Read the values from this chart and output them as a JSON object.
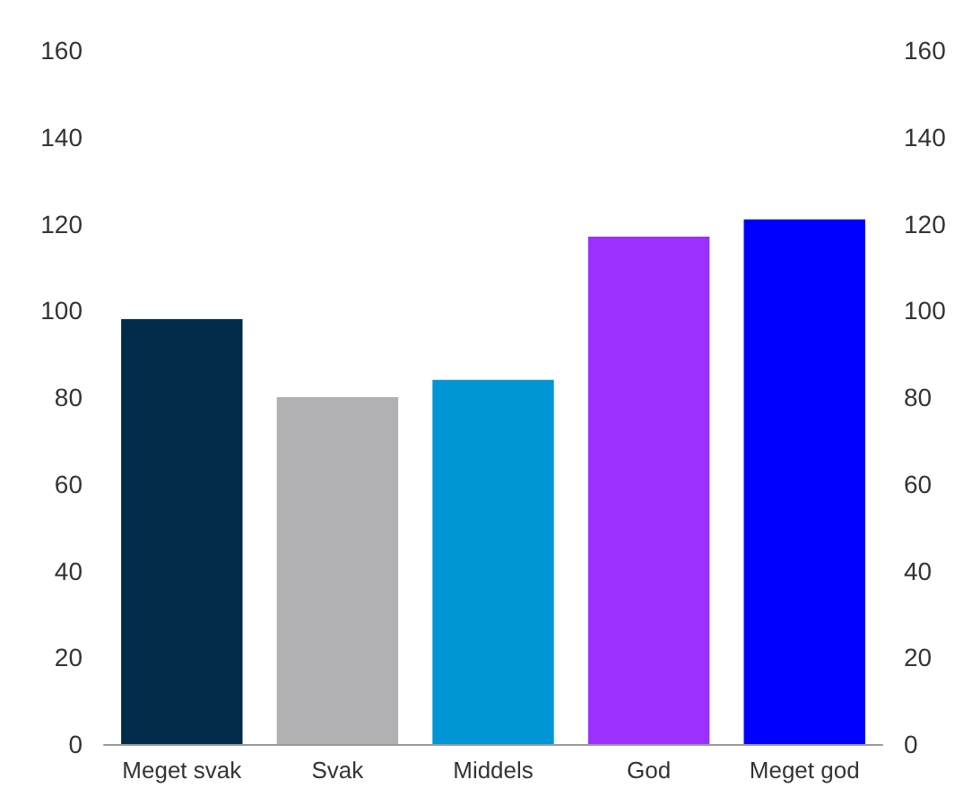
{
  "chart_data": {
    "type": "bar",
    "categories": [
      "Meget svak",
      "Svak",
      "Middels",
      "God",
      "Meget god"
    ],
    "values": [
      98,
      80,
      84,
      117,
      121
    ],
    "colors": [
      "#002b49",
      "#b1b1b3",
      "#0096d6",
      "#9b30ff",
      "#0000ff"
    ],
    "ylim": [
      0,
      160
    ],
    "yticks": [
      0,
      20,
      40,
      60,
      80,
      100,
      120,
      140,
      160
    ],
    "y2lim": [
      0,
      160
    ],
    "y2ticks": [
      0,
      20,
      40,
      60,
      80,
      100,
      120,
      140,
      160
    ],
    "grid": false
  }
}
